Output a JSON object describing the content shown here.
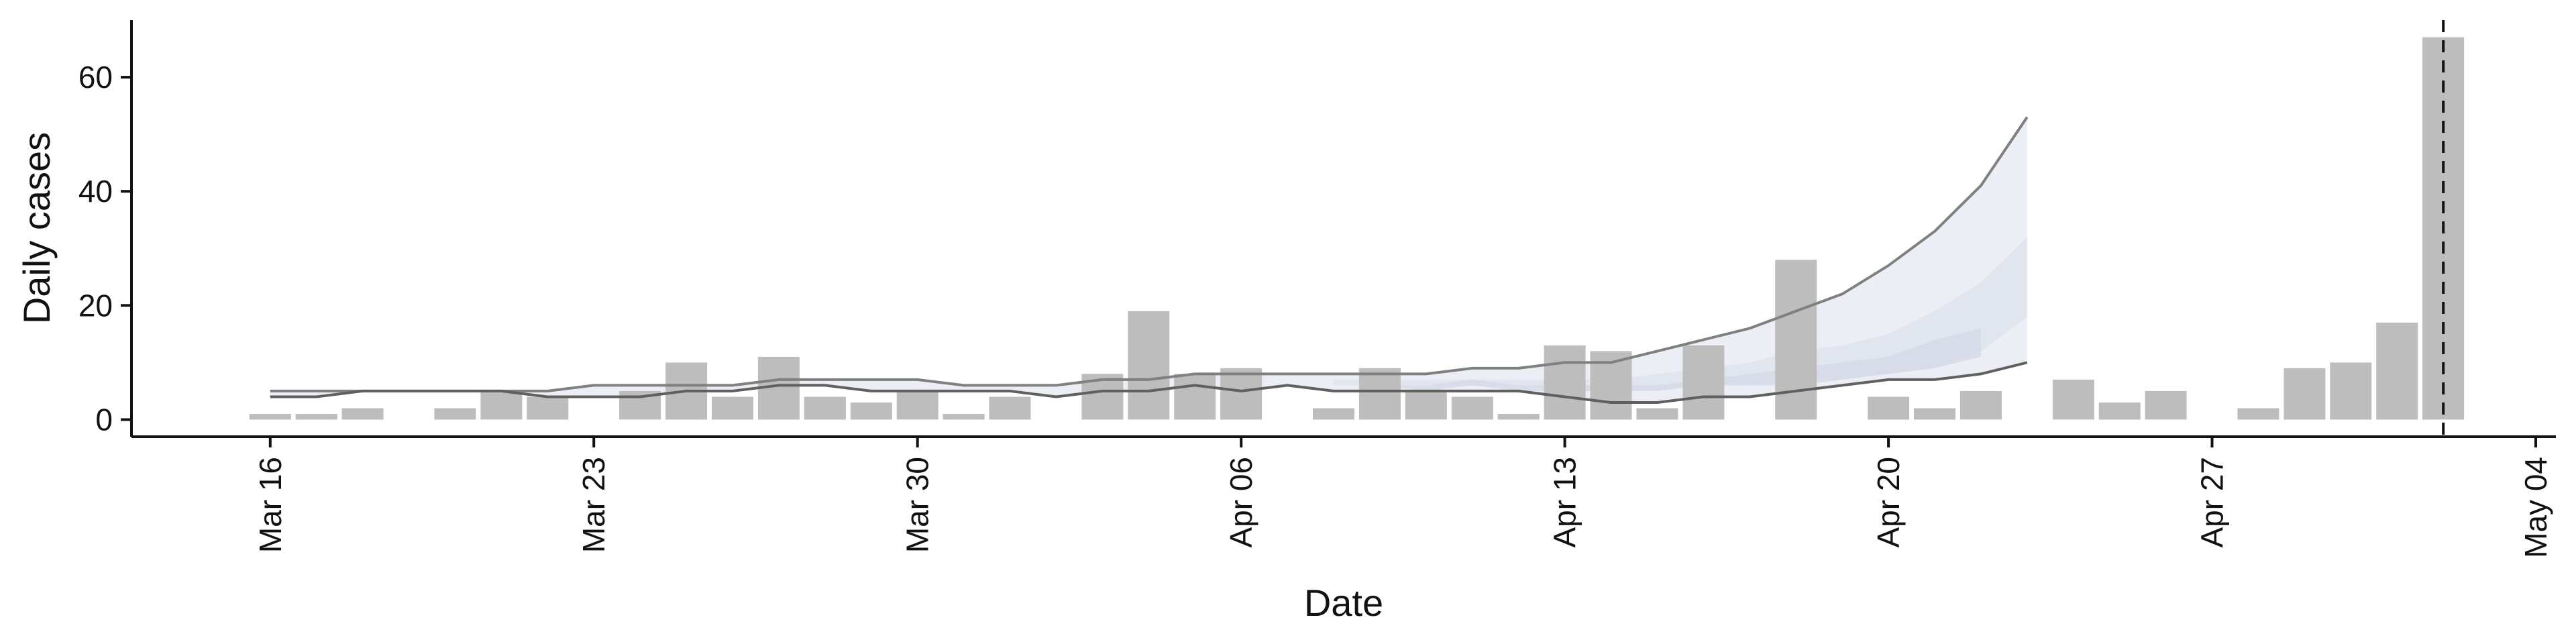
{
  "chart_data": {
    "type": "bar",
    "title": "",
    "xlabel": "Date",
    "ylabel": "Daily cases",
    "ylim": [
      -3,
      70
    ],
    "yticks": [
      0,
      20,
      40,
      60
    ],
    "x_range": [
      "2020-03-13",
      "2020-05-04"
    ],
    "x_ticks": [
      {
        "date": "2020-03-16",
        "label": "Mar 16"
      },
      {
        "date": "2020-03-23",
        "label": "Mar 23"
      },
      {
        "date": "2020-03-30",
        "label": "Mar 30"
      },
      {
        "date": "2020-04-06",
        "label": "Apr 06"
      },
      {
        "date": "2020-04-13",
        "label": "Apr 13"
      },
      {
        "date": "2020-04-20",
        "label": "Apr 20"
      },
      {
        "date": "2020-04-27",
        "label": "Apr 27"
      },
      {
        "date": "2020-05-04",
        "label": "May 04"
      }
    ],
    "grid": false,
    "bars": {
      "color": "#bdbdbd",
      "x": [
        "2020-03-16",
        "2020-03-17",
        "2020-03-18",
        "2020-03-20",
        "2020-03-21",
        "2020-03-22",
        "2020-03-24",
        "2020-03-25",
        "2020-03-26",
        "2020-03-27",
        "2020-03-28",
        "2020-03-29",
        "2020-03-30",
        "2020-03-31",
        "2020-04-01",
        "2020-04-03",
        "2020-04-04",
        "2020-04-05",
        "2020-04-06",
        "2020-04-08",
        "2020-04-09",
        "2020-04-10",
        "2020-04-11",
        "2020-04-12",
        "2020-04-13",
        "2020-04-14",
        "2020-04-15",
        "2020-04-16",
        "2020-04-18",
        "2020-04-20",
        "2020-04-21",
        "2020-04-22",
        "2020-04-24",
        "2020-04-25",
        "2020-04-26",
        "2020-04-28",
        "2020-04-29",
        "2020-04-30",
        "2020-05-01",
        "2020-05-02"
      ],
      "values": [
        1,
        1,
        2,
        2,
        5,
        4,
        5,
        10,
        4,
        11,
        4,
        3,
        5,
        1,
        4,
        8,
        19,
        8,
        9,
        2,
        9,
        5,
        4,
        1,
        13,
        12,
        2,
        13,
        28,
        4,
        2,
        5,
        7,
        3,
        5,
        2,
        9,
        10,
        17,
        67
      ]
    },
    "bands": [
      {
        "color": "#e9ebf3",
        "x": [
          "2020-03-16",
          "2020-03-17",
          "2020-03-18",
          "2020-03-19",
          "2020-03-20",
          "2020-03-21",
          "2020-03-22",
          "2020-03-23",
          "2020-03-24",
          "2020-03-25",
          "2020-03-26",
          "2020-03-27",
          "2020-03-28",
          "2020-03-29",
          "2020-03-30",
          "2020-03-31",
          "2020-04-01",
          "2020-04-02",
          "2020-04-03",
          "2020-04-04",
          "2020-04-05",
          "2020-04-06",
          "2020-04-07",
          "2020-04-08",
          "2020-04-09",
          "2020-04-10",
          "2020-04-11",
          "2020-04-12",
          "2020-04-13",
          "2020-04-14",
          "2020-04-15",
          "2020-04-16",
          "2020-04-17",
          "2020-04-18",
          "2020-04-19",
          "2020-04-20",
          "2020-04-21",
          "2020-04-22",
          "2020-04-23"
        ],
        "upper": [
          5,
          5,
          5,
          5,
          5,
          5,
          5,
          6,
          6,
          6,
          6,
          7,
          7,
          7,
          7,
          6,
          6,
          6,
          7,
          7,
          8,
          8,
          8,
          8,
          8,
          8,
          9,
          9,
          10,
          10,
          12,
          14,
          16,
          19,
          22,
          27,
          33,
          41,
          53
        ],
        "lower": [
          4,
          4,
          5,
          5,
          5,
          5,
          4,
          4,
          4,
          5,
          5,
          6,
          6,
          5,
          5,
          5,
          5,
          4,
          5,
          5,
          6,
          5,
          6,
          5,
          5,
          5,
          5,
          5,
          4,
          3,
          3,
          4,
          4,
          5,
          6,
          7,
          7,
          8,
          10
        ]
      },
      {
        "color": "#dfe3ec",
        "x": [
          "2020-04-08",
          "2020-04-09",
          "2020-04-10",
          "2020-04-11",
          "2020-04-12",
          "2020-04-13",
          "2020-04-14",
          "2020-04-15",
          "2020-04-16",
          "2020-04-17",
          "2020-04-18",
          "2020-04-19",
          "2020-04-20",
          "2020-04-21",
          "2020-04-22",
          "2020-04-23"
        ],
        "upper": [
          7,
          7,
          7,
          7,
          7,
          7,
          7,
          8,
          9,
          10,
          12,
          13,
          15,
          19,
          24,
          32
        ],
        "lower": [
          6,
          6,
          6,
          6,
          6,
          5,
          5,
          5,
          6,
          6,
          7,
          7,
          8,
          9,
          12,
          18
        ]
      },
      {
        "color": "#d6dbe7",
        "x": [
          "2020-04-08",
          "2020-04-09",
          "2020-04-10",
          "2020-04-11",
          "2020-04-12",
          "2020-04-13",
          "2020-04-14",
          "2020-04-15",
          "2020-04-16",
          "2020-04-17",
          "2020-04-18",
          "2020-04-19",
          "2020-04-20",
          "2020-04-21",
          "2020-04-22"
        ],
        "upper": [
          6,
          6,
          6,
          7,
          6,
          6,
          6,
          6,
          7,
          8,
          9,
          10,
          11,
          14,
          16
        ],
        "lower": [
          6,
          6,
          5,
          6,
          5,
          5,
          5,
          5,
          6,
          6,
          6,
          7,
          8,
          9,
          11
        ]
      }
    ],
    "lines": [
      {
        "color": "#808080",
        "x": [
          "2020-03-16",
          "2020-03-17",
          "2020-03-18",
          "2020-03-19",
          "2020-03-20",
          "2020-03-21",
          "2020-03-22",
          "2020-03-23",
          "2020-03-24",
          "2020-03-25",
          "2020-03-26",
          "2020-03-27",
          "2020-03-28",
          "2020-03-29",
          "2020-03-30",
          "2020-03-31",
          "2020-04-01",
          "2020-04-02",
          "2020-04-03",
          "2020-04-04",
          "2020-04-05",
          "2020-04-06",
          "2020-04-07",
          "2020-04-08",
          "2020-04-09",
          "2020-04-10",
          "2020-04-11",
          "2020-04-12",
          "2020-04-13",
          "2020-04-14",
          "2020-04-15",
          "2020-04-16",
          "2020-04-17",
          "2020-04-18",
          "2020-04-19",
          "2020-04-20",
          "2020-04-21",
          "2020-04-22",
          "2020-04-23"
        ],
        "y": [
          5,
          5,
          5,
          5,
          5,
          5,
          5,
          6,
          6,
          6,
          6,
          7,
          7,
          7,
          7,
          6,
          6,
          6,
          7,
          7,
          8,
          8,
          8,
          8,
          8,
          8,
          9,
          9,
          10,
          10,
          12,
          14,
          16,
          19,
          22,
          27,
          33,
          41,
          53
        ]
      },
      {
        "color": "#606060",
        "x": [
          "2020-03-16",
          "2020-03-17",
          "2020-03-18",
          "2020-03-19",
          "2020-03-20",
          "2020-03-21",
          "2020-03-22",
          "2020-03-23",
          "2020-03-24",
          "2020-03-25",
          "2020-03-26",
          "2020-03-27",
          "2020-03-28",
          "2020-03-29",
          "2020-03-30",
          "2020-03-31",
          "2020-04-01",
          "2020-04-02",
          "2020-04-03",
          "2020-04-04",
          "2020-04-05",
          "2020-04-06",
          "2020-04-07",
          "2020-04-08",
          "2020-04-09",
          "2020-04-10",
          "2020-04-11",
          "2020-04-12",
          "2020-04-13",
          "2020-04-14",
          "2020-04-15",
          "2020-04-16",
          "2020-04-17",
          "2020-04-18",
          "2020-04-19",
          "2020-04-20",
          "2020-04-21",
          "2020-04-22",
          "2020-04-23"
        ],
        "y": [
          4,
          4,
          5,
          5,
          5,
          5,
          4,
          4,
          4,
          5,
          5,
          6,
          6,
          5,
          5,
          5,
          5,
          4,
          5,
          5,
          6,
          5,
          6,
          5,
          5,
          5,
          5,
          5,
          4,
          3,
          3,
          4,
          4,
          5,
          6,
          7,
          7,
          8,
          10
        ]
      }
    ],
    "vline": {
      "x": "2020-05-02",
      "style": "dashed",
      "color": "#111111"
    }
  }
}
